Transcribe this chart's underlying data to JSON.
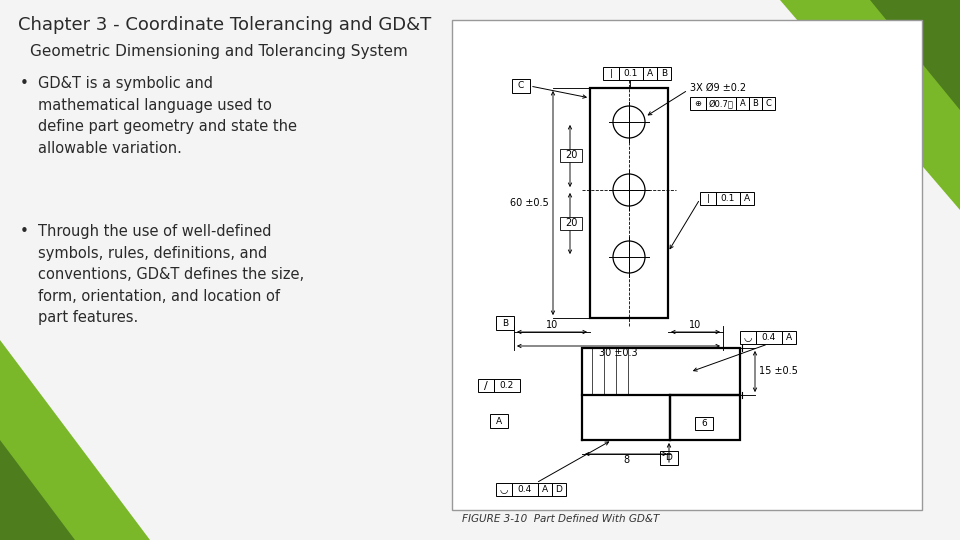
{
  "title": "Chapter 3 - Coordinate Tolerancing and GD&T",
  "subtitle": "Geometric Dimensioning and Tolerancing System",
  "bullet1_lines": [
    "GD&T is a symbolic and",
    "mathematical language used to",
    "define part geometry and state the",
    "allowable variation."
  ],
  "bullet2_lines": [
    "Through the use of well-defined",
    "symbols, rules, definitions, and",
    "conventions, GD&T defines the size,",
    "form, orientation, and location of",
    "part features."
  ],
  "figure_caption": "FIGURE 3-10  Part Defined With GD&T",
  "bg_color": "#f4f4f4",
  "text_color": "#2a2a2a",
  "green1": "#7ab829",
  "green2": "#4e7d1e",
  "title_fontsize": 13,
  "subtitle_fontsize": 11,
  "body_fontsize": 10.5
}
